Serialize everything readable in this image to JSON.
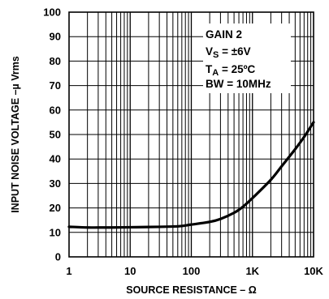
{
  "chart_data": {
    "type": "line",
    "xscale": "log",
    "xlim": [
      1,
      10000
    ],
    "ylim": [
      0,
      100
    ],
    "xlabel": "SOURCE RESISTANCE – Ω",
    "ylabel": "INPUT NOISE VOLTAGE –µ Vrms",
    "xticks": [
      {
        "value": 1,
        "label": "1"
      },
      {
        "value": 10,
        "label": "10"
      },
      {
        "value": 100,
        "label": "100"
      },
      {
        "value": 1000,
        "label": "1K"
      },
      {
        "value": 10000,
        "label": "10K"
      }
    ],
    "yticks": [
      {
        "value": 0,
        "label": "0"
      },
      {
        "value": 10,
        "label": "10"
      },
      {
        "value": 20,
        "label": "20"
      },
      {
        "value": 30,
        "label": "30"
      },
      {
        "value": 40,
        "label": "40"
      },
      {
        "value": 50,
        "label": "50"
      },
      {
        "value": 60,
        "label": "60"
      },
      {
        "value": 70,
        "label": "70"
      },
      {
        "value": 80,
        "label": "80"
      },
      {
        "value": 90,
        "label": "90"
      },
      {
        "value": 100,
        "label": "100"
      }
    ],
    "grid": true,
    "conditions": {
      "gain": "GAIN 2",
      "vs_main": "V",
      "vs_sub": "S",
      "vs_value": " = ±6V",
      "ta_main": "T",
      "ta_sub": "A",
      "ta_value": " = 25ºC",
      "bw": "BW = 10MHz"
    },
    "series": [
      {
        "color": "#000000",
        "x": [
          1,
          2,
          3,
          5,
          10,
          20,
          50,
          70,
          100,
          200,
          300,
          500,
          700,
          1000,
          2000,
          3000,
          5000,
          7000,
          10000
        ],
        "y": [
          12.3,
          12.0,
          12.0,
          12.0,
          12.1,
          12.2,
          12.4,
          12.6,
          13.2,
          14.3,
          15.5,
          18.0,
          20.5,
          24.0,
          31.5,
          37.0,
          44.0,
          49.0,
          55.0
        ]
      }
    ]
  }
}
